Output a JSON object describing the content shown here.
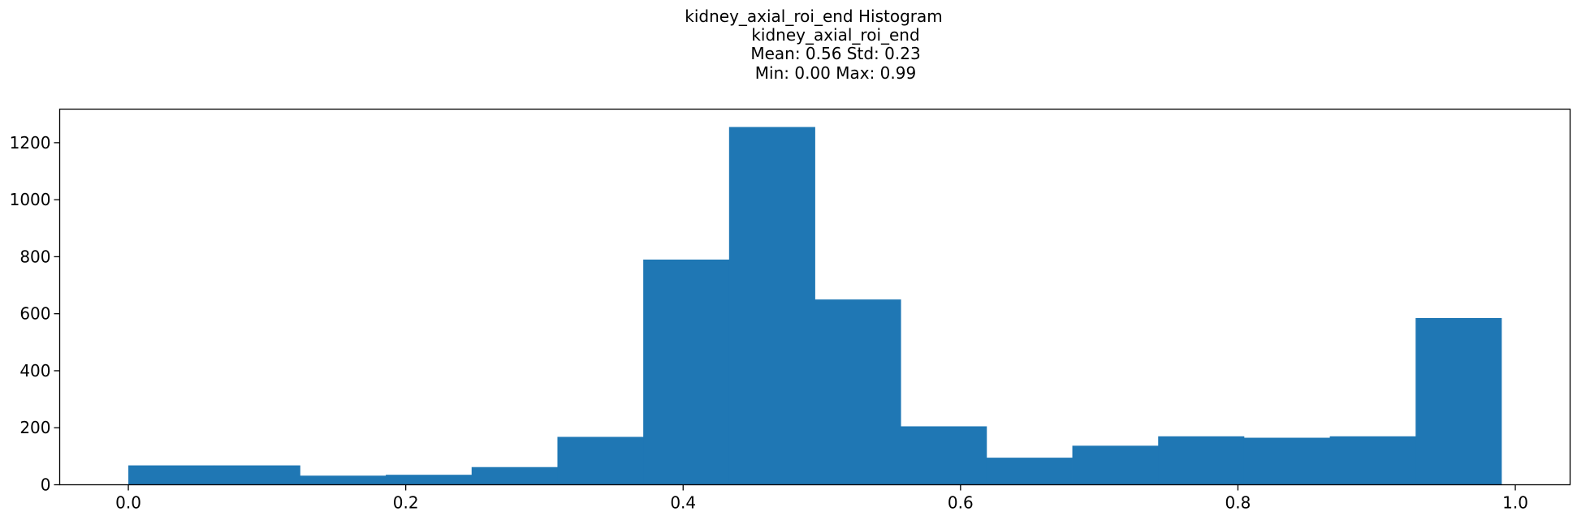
{
  "chart_data": {
    "type": "bar",
    "title": "kidney_axial_roi_end Histogram",
    "subtitle_lines": [
      "kidney_axial_roi_end",
      "Mean: 0.56 Std: 0.23",
      "Min: 0.00 Max: 0.99"
    ],
    "xlabel": "",
    "ylabel": "",
    "bin_range": [
      0.0,
      0.99
    ],
    "values": [
      68,
      68,
      32,
      35,
      62,
      168,
      790,
      1255,
      650,
      205,
      95,
      137,
      170,
      165,
      170,
      585
    ],
    "xlim": [
      -0.0495,
      1.0395
    ],
    "ylim": [
      0,
      1317.75
    ],
    "xticks": [
      0.0,
      0.2,
      0.4,
      0.6,
      0.8,
      1.0
    ],
    "xtick_labels": [
      "0.0",
      "0.2",
      "0.4",
      "0.6",
      "0.8",
      "1.0"
    ],
    "yticks": [
      0,
      200,
      400,
      600,
      800,
      1000,
      1200
    ],
    "ytick_labels": [
      "0",
      "200",
      "400",
      "600",
      "800",
      "1000",
      "1200"
    ],
    "bar_color": "#1f77b4",
    "grid": false,
    "legend": "none"
  }
}
